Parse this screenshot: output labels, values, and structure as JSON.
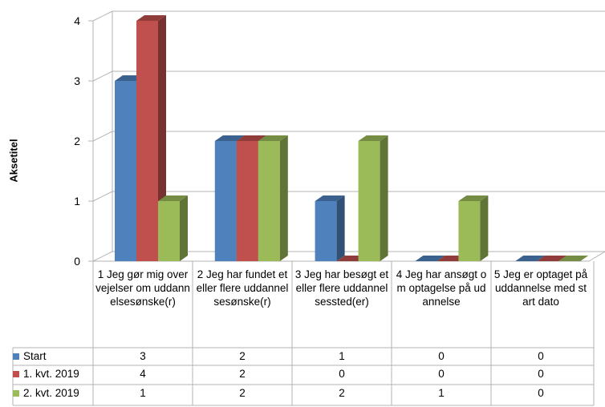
{
  "chart_data": {
    "type": "bar",
    "title": "",
    "xlabel": "",
    "ylabel": "Aksetitel",
    "ylim": [
      0,
      4
    ],
    "yticks": [
      0,
      1,
      2,
      3,
      4
    ],
    "grid": true,
    "legend": "table-below",
    "categories": [
      "1 Jeg gør mig overvejelser om uddannelsesønske(r)",
      "2 Jeg har fundet et eller flere uddannelsesønske(r)",
      "3 Jeg har besøgt et eller flere uddannelsessted(er)",
      "4 Jeg har ansøgt om optagelse på udannelse",
      "5 Jeg er optaget på uddannelse med start dato"
    ],
    "series": [
      {
        "name": "Start",
        "values": [
          3,
          2,
          1,
          0,
          0
        ],
        "color": "#4F81BD"
      },
      {
        "name": "1. kvt. 2019",
        "values": [
          4,
          2,
          0,
          0,
          0
        ],
        "color": "#C0504D"
      },
      {
        "name": "2. kvt. 2019",
        "values": [
          1,
          2,
          2,
          1,
          0
        ],
        "color": "#9BBB59"
      }
    ]
  }
}
